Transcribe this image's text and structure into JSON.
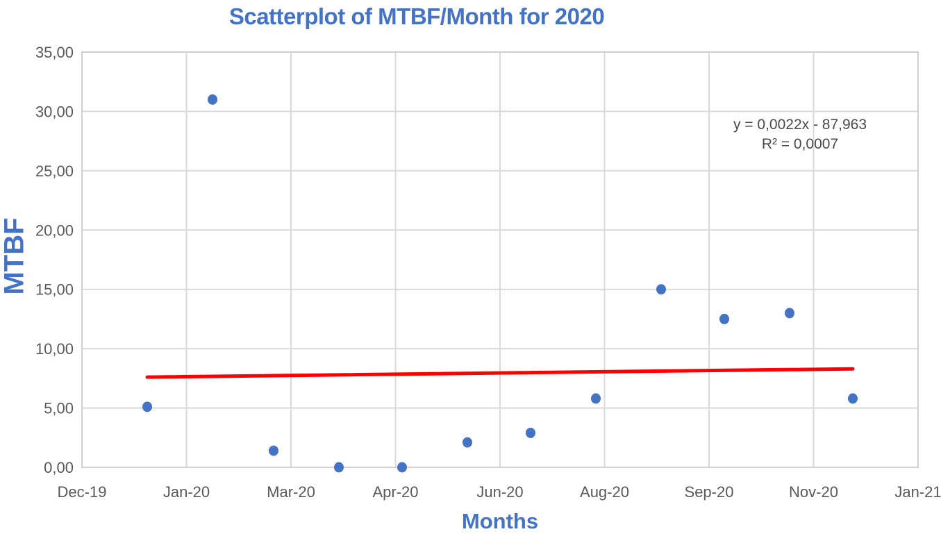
{
  "chart_data": {
    "type": "scatter",
    "title": "Scatterplot of MTBF/Month for 2020",
    "xlabel": "Months",
    "ylabel": "MTBF",
    "grid": true,
    "legend": false,
    "x_axis": {
      "type": "date",
      "tick_labels": [
        "Dec-19",
        "Jan-20",
        "Mar-20",
        "Apr-20",
        "Jun-20",
        "Aug-20",
        "Sep-20",
        "Nov-20",
        "Jan-21"
      ],
      "range": [
        "Dec-19",
        "Jan-21"
      ],
      "range_days": 397
    },
    "y_axis": {
      "tick_labels": [
        "0,00",
        "5,00",
        "10,00",
        "15,00",
        "20,00",
        "25,00",
        "30,00",
        "35,00"
      ],
      "min": 0,
      "max": 35,
      "step": 5,
      "decimal_style": "comma"
    },
    "series": [
      {
        "name": "MTBF",
        "marker_color": "#4472C4",
        "points": [
          {
            "month": "Jan-20",
            "day_offset": 31,
            "value": 5.1
          },
          {
            "month": "Feb-20",
            "day_offset": 62,
            "value": 31.0
          },
          {
            "month": "Mar-20",
            "day_offset": 91,
            "value": 1.4
          },
          {
            "month": "Apr-20",
            "day_offset": 122,
            "value": 0.0
          },
          {
            "month": "May-20",
            "day_offset": 152,
            "value": 0.0
          },
          {
            "month": "Jun-20",
            "day_offset": 183,
            "value": 2.1
          },
          {
            "month": "Jul-20",
            "day_offset": 213,
            "value": 2.9
          },
          {
            "month": "Aug-20",
            "day_offset": 244,
            "value": 5.8
          },
          {
            "month": "Sep-20",
            "day_offset": 275,
            "value": 15.0
          },
          {
            "month": "Oct-20",
            "day_offset": 305,
            "value": 12.5
          },
          {
            "month": "Nov-20",
            "day_offset": 336,
            "value": 13.0
          },
          {
            "month": "Dec-20",
            "day_offset": 366,
            "value": 5.8
          }
        ]
      }
    ],
    "trendline": {
      "equation": "y = 0,0022x - 87,963",
      "r_squared": "R² = 0,0007",
      "color": "#FF0000",
      "start": {
        "day_offset": 31,
        "value": 7.6
      },
      "end": {
        "day_offset": 366,
        "value": 8.3
      }
    },
    "colors": {
      "title_text": "#4472C4",
      "axis_title_text": "#4472C4",
      "tick_text": "#595959",
      "annotation_text": "#4A4A4A",
      "gridline": "#D9D9D9",
      "plot_border": "#CFCFCF",
      "background": "#FFFFFF"
    }
  }
}
